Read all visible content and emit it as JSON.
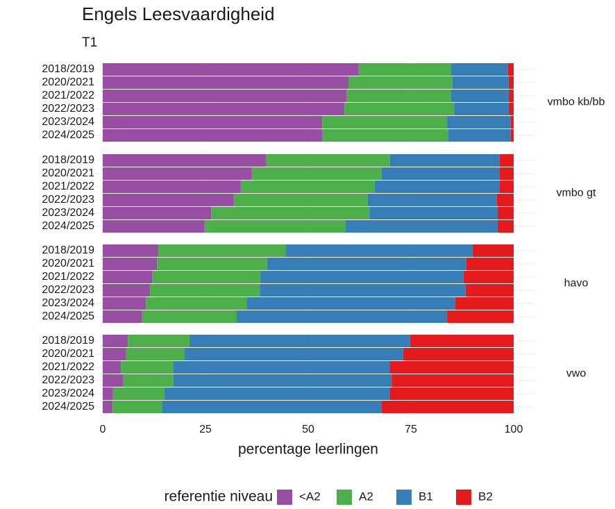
{
  "chart_data": {
    "type": "bar",
    "stacked": true,
    "orientation": "horizontal",
    "title": "Engels Leesvaardigheid",
    "subtitle": "T1",
    "xlabel": "percentage leerlingen",
    "legend_title": "referentie niveau",
    "xlim": [
      0,
      100
    ],
    "xticks": [
      0,
      25,
      50,
      75,
      100
    ],
    "grid": true,
    "legend": "bottom",
    "groups": [
      {
        "label": "vmbo kb/bb",
        "categories": [
          "2018/2019",
          "2020/2021",
          "2021/2022",
          "2022/2023",
          "2023/2024",
          "2024/2025"
        ]
      },
      {
        "label": "vmbo gt",
        "categories": [
          "2018/2019",
          "2020/2021",
          "2021/2022",
          "2022/2023",
          "2023/2024",
          "2024/2025"
        ]
      },
      {
        "label": "havo",
        "categories": [
          "2018/2019",
          "2020/2021",
          "2021/2022",
          "2022/2023",
          "2023/2024",
          "2024/2025"
        ]
      },
      {
        "label": "vwo",
        "categories": [
          "2018/2019",
          "2020/2021",
          "2021/2022",
          "2022/2023",
          "2023/2024",
          "2024/2025"
        ]
      }
    ],
    "series": [
      {
        "name": "<A2",
        "color": "#984ea3",
        "values": [
          [
            62.3,
            59.8,
            59.3,
            58.8,
            53.4,
            53.5
          ],
          [
            39.7,
            36.3,
            33.6,
            31.9,
            26.4,
            24.8
          ],
          [
            13.5,
            13.2,
            12.0,
            11.5,
            10.5,
            9.6
          ],
          [
            6.1,
            5.7,
            4.4,
            4.9,
            2.5,
            2.4
          ]
        ]
      },
      {
        "name": "A2",
        "color": "#4daf4a",
        "values": [
          [
            22.5,
            25.3,
            25.5,
            26.7,
            30.4,
            30.6
          ],
          [
            30.2,
            31.6,
            32.6,
            32.6,
            38.5,
            34.2
          ],
          [
            31.1,
            26.8,
            26.3,
            26.7,
            24.5,
            23.0
          ],
          [
            15.0,
            14.1,
            12.7,
            12.3,
            12.5,
            12.0
          ]
        ]
      },
      {
        "name": "B1",
        "color": "#377eb8",
        "values": [
          [
            13.8,
            13.7,
            14.0,
            13.3,
            15.5,
            15.2
          ],
          [
            26.7,
            28.6,
            30.3,
            31.4,
            31.2,
            37.1
          ],
          [
            45.4,
            48.5,
            49.5,
            50.1,
            50.8,
            51.2
          ],
          [
            53.7,
            53.3,
            52.7,
            53.1,
            54.8,
            53.5
          ]
        ]
      },
      {
        "name": "B2",
        "color": "#e41a1c",
        "values": [
          [
            1.4,
            1.2,
            1.2,
            1.2,
            0.7,
            0.7
          ],
          [
            3.4,
            3.5,
            3.5,
            4.1,
            3.9,
            3.9
          ],
          [
            10.0,
            11.5,
            12.2,
            11.7,
            14.2,
            16.2
          ],
          [
            25.2,
            26.9,
            30.2,
            29.7,
            30.2,
            32.1
          ]
        ]
      }
    ]
  }
}
